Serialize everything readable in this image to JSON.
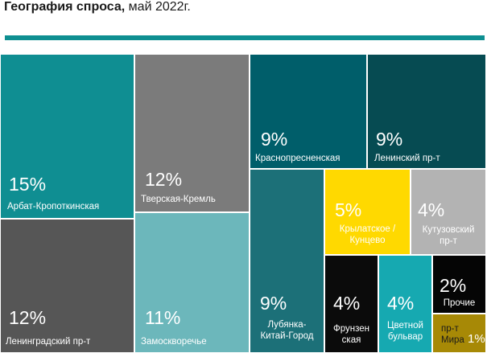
{
  "header": {
    "title_bold": "География спроса,",
    "title_rest": " май 2022г."
  },
  "chart_data": {
    "type": "treemap",
    "title": "География спроса, май 2022г.",
    "unit": "%",
    "tiles": [
      {
        "name": "Арбат-Кропоткинская",
        "value": 15,
        "pct_label": "15%",
        "label_lines": [
          "Арбат-Кропоткинская"
        ],
        "color": "#0f8e92",
        "text_color": "#ffffff"
      },
      {
        "name": "Ленинградский пр-т",
        "value": 12,
        "pct_label": "12%",
        "label_lines": [
          "Ленинградский пр-т"
        ],
        "color": "#565656",
        "text_color": "#ffffff"
      },
      {
        "name": "Тверская-Кремль",
        "value": 12,
        "pct_label": "12%",
        "label_lines": [
          "Тверская-Кремль"
        ],
        "color": "#7b7b7b",
        "text_color": "#ffffff"
      },
      {
        "name": "Замоскворечье",
        "value": 11,
        "pct_label": "11%",
        "label_lines": [
          "Замоскворечье"
        ],
        "color": "#6cb7bb",
        "text_color": "#ffffff"
      },
      {
        "name": "Краснопресненская",
        "value": 9,
        "pct_label": "9%",
        "label_lines": [
          "Краснопресненская"
        ],
        "color": "#005e6a",
        "text_color": "#ffffff"
      },
      {
        "name": "Ленинский пр-т",
        "value": 9,
        "pct_label": "9%",
        "label_lines": [
          "Ленинский пр-т"
        ],
        "color": "#064b52",
        "text_color": "#ffffff"
      },
      {
        "name": "Лубянка-Китай-Город",
        "value": 9,
        "pct_label": "9%",
        "label_lines": [
          "Лубянка-",
          "Китай-Город"
        ],
        "color": "#1c7078",
        "text_color": "#ffffff"
      },
      {
        "name": "Крылатское / Кунцево",
        "value": 5,
        "pct_label": "5%",
        "label_lines": [
          "Крылатское /",
          "Кунцево"
        ],
        "color": "#ffd900",
        "text_color": "#ffffff"
      },
      {
        "name": "Кутузовский пр-т",
        "value": 4,
        "pct_label": "4%",
        "label_lines": [
          "Кутузовский",
          "пр-т"
        ],
        "color": "#b3b3b3",
        "text_color": "#ffffff"
      },
      {
        "name": "Фрунзенская",
        "value": 4,
        "pct_label": "4%",
        "label_lines": [
          "Фрунзен",
          "ская"
        ],
        "color": "#0b0b0b",
        "text_color": "#ffffff"
      },
      {
        "name": "Цветной бульвар",
        "value": 4,
        "pct_label": "4%",
        "label_lines": [
          "Цветной",
          "бульвар"
        ],
        "color": "#16a9b1",
        "text_color": "#ffffff"
      },
      {
        "name": "Прочие",
        "value": 2,
        "pct_label": "2%",
        "label_lines": [
          "Прочие"
        ],
        "color": "#050505",
        "text_color": "#ffffff"
      },
      {
        "name": "пр-т Мира",
        "value": 1,
        "pct_label": "1%",
        "label_lines": [
          "пр-т",
          "Мира"
        ],
        "color": "#a78906",
        "text_color": "#1a1a1a"
      }
    ]
  }
}
